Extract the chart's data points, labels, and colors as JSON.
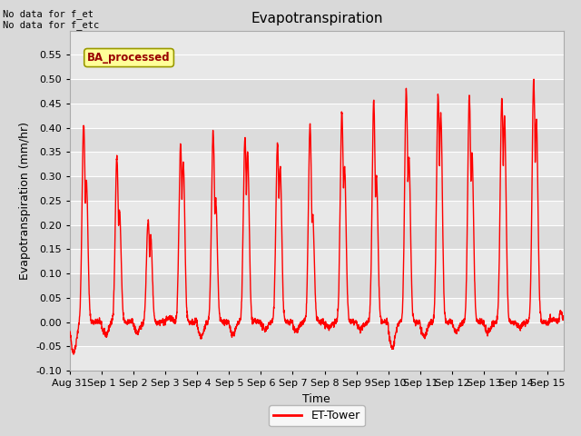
{
  "title": "Evapotranspiration",
  "xlabel": "Time",
  "ylabel": "Evapotranspiration (mm/hr)",
  "ylim": [
    -0.1,
    0.6
  ],
  "yticks": [
    -0.1,
    -0.05,
    0.0,
    0.05,
    0.1,
    0.15,
    0.2,
    0.25,
    0.3,
    0.35,
    0.4,
    0.45,
    0.5,
    0.55
  ],
  "line_color": "#ff0000",
  "line_width": 1.0,
  "annotation_top_left": "No data for f_et\nNo data for f_etc",
  "legend_label": "ET-Tower",
  "ba_processed_text": "BA_processed",
  "ba_processed_color": "#990000",
  "ba_processed_bg": "#ffff99",
  "ba_processed_edge": "#999900",
  "xtick_labels": [
    "Aug 31",
    "Sep 1",
    "Sep 2",
    "Sep 3",
    "Sep 4",
    "Sep 5",
    "Sep 6",
    "Sep 7",
    "Sep 8",
    "Sep 9",
    "Sep 10",
    "Sep 11",
    "Sep 12",
    "Sep 13",
    "Sep 14",
    "Sep 15"
  ],
  "daily_peaks": [
    0.408,
    0.338,
    0.208,
    0.365,
    0.39,
    0.38,
    0.368,
    0.405,
    0.432,
    0.455,
    0.477,
    0.467,
    0.465,
    0.465,
    0.502,
    0.02
  ],
  "daily_secondary_peaks": [
    0.295,
    0.23,
    0.175,
    0.33,
    0.248,
    0.35,
    0.32,
    0.222,
    0.32,
    0.3,
    0.34,
    0.43,
    0.35,
    0.42,
    0.415,
    0.0
  ],
  "peak_hour": [
    10.5,
    11.5,
    11.0,
    11.5,
    12.0,
    12.0,
    12.5,
    13.0,
    13.0,
    13.0,
    13.5,
    13.5,
    13.0,
    13.5,
    13.5,
    10.0
  ],
  "secondary_hour": [
    12.5,
    13.5,
    13.0,
    13.5,
    14.0,
    14.0,
    14.5,
    15.0,
    15.0,
    15.0,
    15.5,
    15.5,
    15.0,
    15.5,
    15.5,
    0.0
  ],
  "min_vals": [
    -0.062,
    -0.028,
    -0.022,
    0.008,
    -0.03,
    -0.025,
    -0.015,
    -0.018,
    -0.01,
    -0.015,
    -0.055,
    -0.03,
    -0.02,
    -0.022,
    -0.012,
    0.005
  ],
  "min_hour": [
    3.0,
    3.0,
    3.0,
    3.0,
    3.0,
    3.0,
    3.0,
    3.0,
    3.0,
    3.0,
    3.0,
    3.0,
    3.0,
    3.0,
    3.0,
    3.0
  ],
  "num_days": 15.5,
  "bg_color": "#d9d9d9",
  "plot_bg_color_light": "#e8e8e8",
  "plot_bg_color_dark": "#dcdcdc"
}
